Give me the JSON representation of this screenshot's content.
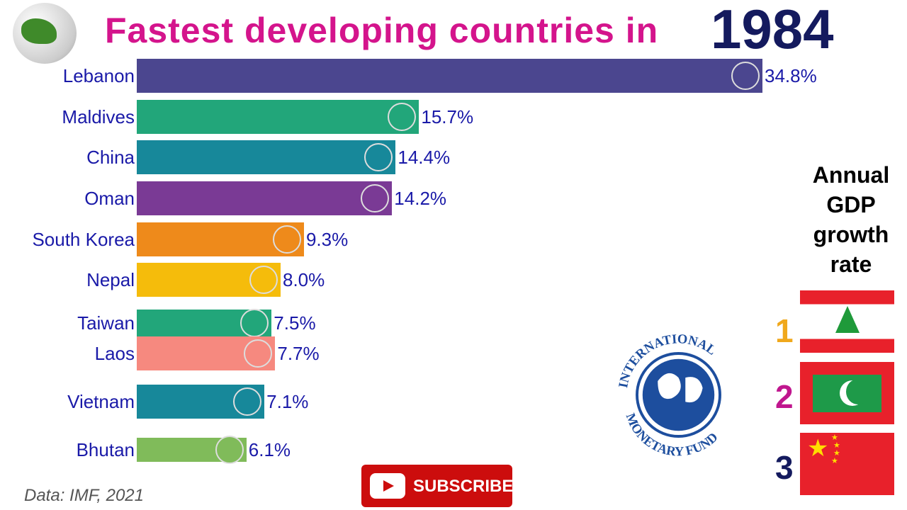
{
  "header": {
    "title": "Fastest developing countries in",
    "year": "1984"
  },
  "chart_data": {
    "type": "bar",
    "orientation": "horizontal",
    "title": "Fastest developing countries in 1984",
    "categories": [
      "Lebanon",
      "Maldives",
      "China",
      "Oman",
      "South Korea",
      "Nepal",
      "Taiwan",
      "Laos",
      "Vietnam",
      "Bhutan"
    ],
    "values": [
      34.8,
      15.7,
      14.4,
      14.2,
      9.3,
      8.0,
      7.5,
      7.7,
      7.1,
      6.1
    ],
    "value_labels": [
      "34.8%",
      "15.7%",
      "14.4%",
      "14.2%",
      "9.3%",
      "8.0%",
      "7.5%",
      "7.7%",
      "7.1%",
      "6.1%"
    ],
    "colors": [
      "#4b468f",
      "#22a67a",
      "#17889a",
      "#7a3a95",
      "#ee8a1b",
      "#f5bc0b",
      "#22a67a",
      "#f6897f",
      "#17889a",
      "#80bb5a"
    ],
    "grid": false,
    "legend": "none"
  },
  "side_panel": {
    "title_lines": [
      "Annual",
      "GDP",
      "growth",
      "rate"
    ],
    "ranks": [
      {
        "n": "1",
        "color": "#f0a81c",
        "country": "Lebanon"
      },
      {
        "n": "2",
        "color": "#c0168e",
        "country": "Maldives"
      },
      {
        "n": "3",
        "color": "#141a5e",
        "country": "China"
      }
    ]
  },
  "source": "Data: IMF, 2021",
  "subscribe_label": "SUBSCRIBE",
  "imf_logo_text": "INTERNATIONAL MONETARY FUND"
}
